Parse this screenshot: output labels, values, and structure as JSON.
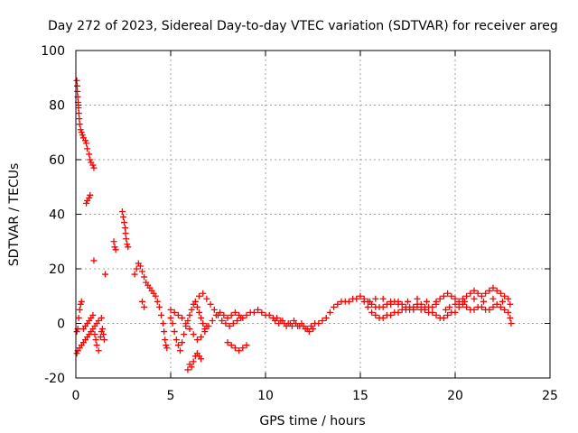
{
  "chart_data": {
    "type": "scatter",
    "title": "Day 272 of 2023, Sidereal Day-to-day VTEC variation (SDTVAR) for receiver areg",
    "xlabel": "GPS time / hours",
    "ylabel": "SDTVAR / TECUs",
    "xlim": [
      0,
      25
    ],
    "ylim": [
      -20,
      100
    ],
    "xticks": [
      0,
      5,
      10,
      15,
      20,
      25
    ],
    "yticks": [
      -20,
      0,
      20,
      40,
      60,
      80,
      100
    ],
    "grid": true,
    "marker": "+",
    "color": "#ff0000",
    "series": [
      {
        "name": "SDTVAR",
        "points": [
          [
            0.05,
            89
          ],
          [
            0.07,
            87
          ],
          [
            0.08,
            85
          ],
          [
            0.1,
            83
          ],
          [
            0.12,
            81
          ],
          [
            0.14,
            79
          ],
          [
            0.16,
            77
          ],
          [
            0.18,
            75
          ],
          [
            0.2,
            73
          ],
          [
            0.25,
            71
          ],
          [
            0.3,
            70
          ],
          [
            0.35,
            69
          ],
          [
            0.4,
            68
          ],
          [
            0.5,
            67
          ],
          [
            0.55,
            66
          ],
          [
            0.6,
            64
          ],
          [
            0.7,
            62
          ],
          [
            0.75,
            60
          ],
          [
            0.8,
            59
          ],
          [
            0.9,
            58
          ],
          [
            0.95,
            57
          ],
          [
            0.55,
            44
          ],
          [
            0.6,
            45
          ],
          [
            0.7,
            46
          ],
          [
            0.75,
            47
          ],
          [
            0.95,
            23
          ],
          [
            1.55,
            18
          ],
          [
            2.0,
            30
          ],
          [
            2.05,
            28
          ],
          [
            2.1,
            27
          ],
          [
            2.45,
            41
          ],
          [
            2.5,
            39
          ],
          [
            2.55,
            37
          ],
          [
            2.6,
            35
          ],
          [
            2.62,
            33
          ],
          [
            2.65,
            31
          ],
          [
            2.7,
            29
          ],
          [
            2.75,
            28
          ],
          [
            0.05,
            -11
          ],
          [
            0.1,
            -10
          ],
          [
            0.2,
            -9
          ],
          [
            0.3,
            -8
          ],
          [
            0.4,
            -7
          ],
          [
            0.5,
            -6
          ],
          [
            0.6,
            -5
          ],
          [
            0.7,
            -4
          ],
          [
            0.8,
            -3
          ],
          [
            0.9,
            -2
          ],
          [
            1.0,
            -1
          ],
          [
            1.1,
            0
          ],
          [
            1.2,
            1
          ],
          [
            1.35,
            2
          ],
          [
            0.05,
            -3
          ],
          [
            0.1,
            -2
          ],
          [
            0.15,
            2
          ],
          [
            0.2,
            5
          ],
          [
            0.25,
            7
          ],
          [
            0.3,
            8
          ],
          [
            0.4,
            -2
          ],
          [
            0.5,
            -1
          ],
          [
            0.6,
            0
          ],
          [
            0.7,
            1
          ],
          [
            0.8,
            2
          ],
          [
            0.9,
            3
          ],
          [
            1.0,
            -4
          ],
          [
            1.05,
            -6
          ],
          [
            1.1,
            -8
          ],
          [
            1.2,
            -10
          ],
          [
            1.3,
            -5
          ],
          [
            1.35,
            -3
          ],
          [
            1.4,
            -2
          ],
          [
            1.45,
            -4
          ],
          [
            1.5,
            -6
          ],
          [
            3.1,
            18
          ],
          [
            3.2,
            20
          ],
          [
            3.3,
            22
          ],
          [
            3.4,
            21
          ],
          [
            3.5,
            19
          ],
          [
            3.6,
            17
          ],
          [
            3.7,
            15
          ],
          [
            3.8,
            14
          ],
          [
            3.9,
            13
          ],
          [
            4.0,
            12
          ],
          [
            4.1,
            11
          ],
          [
            4.2,
            10
          ],
          [
            4.3,
            8
          ],
          [
            4.4,
            6
          ],
          [
            4.5,
            3
          ],
          [
            4.6,
            0
          ],
          [
            4.65,
            -3
          ],
          [
            4.7,
            -6
          ],
          [
            4.75,
            -8
          ],
          [
            4.8,
            -9
          ],
          [
            3.5,
            8
          ],
          [
            3.6,
            6
          ],
          [
            5.0,
            2
          ],
          [
            5.1,
            0
          ],
          [
            5.2,
            -3
          ],
          [
            5.3,
            -6
          ],
          [
            5.4,
            -8
          ],
          [
            5.5,
            -10
          ],
          [
            5.6,
            -7
          ],
          [
            5.7,
            -4
          ],
          [
            5.8,
            -1
          ],
          [
            5.9,
            1
          ],
          [
            6.0,
            3
          ],
          [
            6.1,
            5
          ],
          [
            6.2,
            7
          ],
          [
            6.3,
            8
          ],
          [
            6.4,
            6
          ],
          [
            6.5,
            4
          ],
          [
            6.6,
            2
          ],
          [
            6.7,
            0
          ],
          [
            6.8,
            -2
          ],
          [
            6.9,
            -1
          ],
          [
            5.0,
            5
          ],
          [
            5.2,
            4
          ],
          [
            5.4,
            3
          ],
          [
            5.6,
            2
          ],
          [
            5.8,
            0
          ],
          [
            6.0,
            -2
          ],
          [
            6.2,
            -4
          ],
          [
            6.4,
            -6
          ],
          [
            6.6,
            -5
          ],
          [
            6.8,
            -3
          ],
          [
            7.0,
            -1
          ],
          [
            7.2,
            1
          ],
          [
            7.4,
            3
          ],
          [
            7.6,
            4
          ],
          [
            7.8,
            3
          ],
          [
            8.0,
            2
          ],
          [
            8.2,
            3
          ],
          [
            8.4,
            4
          ],
          [
            8.6,
            3
          ],
          [
            8.8,
            2
          ],
          [
            6.5,
            10
          ],
          [
            6.7,
            11
          ],
          [
            6.9,
            9
          ],
          [
            7.1,
            7
          ],
          [
            7.3,
            5
          ],
          [
            7.5,
            3
          ],
          [
            7.7,
            1
          ],
          [
            7.9,
            0
          ],
          [
            8.1,
            -1
          ],
          [
            8.3,
            0
          ],
          [
            8.5,
            1
          ],
          [
            8.7,
            2
          ],
          [
            6.0,
            -15
          ],
          [
            6.1,
            -16
          ],
          [
            6.2,
            -14
          ],
          [
            6.3,
            -12
          ],
          [
            6.4,
            -11
          ],
          [
            6.5,
            -12
          ],
          [
            6.6,
            -13
          ],
          [
            5.9,
            -17
          ],
          [
            8.0,
            -7
          ],
          [
            8.2,
            -8
          ],
          [
            8.4,
            -9
          ],
          [
            8.6,
            -10
          ],
          [
            8.8,
            -9
          ],
          [
            9.0,
            -8
          ],
          [
            9.0,
            3
          ],
          [
            9.2,
            4
          ],
          [
            9.4,
            4
          ],
          [
            9.6,
            5
          ],
          [
            9.8,
            4
          ],
          [
            10.0,
            3
          ],
          [
            10.2,
            3
          ],
          [
            10.4,
            2
          ],
          [
            10.6,
            2
          ],
          [
            10.8,
            1
          ],
          [
            11.0,
            0
          ],
          [
            11.2,
            0
          ],
          [
            11.4,
            -1
          ],
          [
            11.6,
            0
          ],
          [
            11.8,
            -1
          ],
          [
            12.0,
            -1
          ],
          [
            12.2,
            -2
          ],
          [
            12.4,
            -1
          ],
          [
            12.6,
            0
          ],
          [
            12.8,
            0
          ],
          [
            13.0,
            1
          ],
          [
            10.5,
            1
          ],
          [
            10.7,
            0
          ],
          [
            10.9,
            1
          ],
          [
            11.1,
            -1
          ],
          [
            11.3,
            0
          ],
          [
            11.5,
            1
          ],
          [
            11.7,
            -1
          ],
          [
            11.9,
            0
          ],
          [
            12.1,
            -2
          ],
          [
            12.3,
            -3
          ],
          [
            12.5,
            -2
          ],
          [
            13.2,
            2
          ],
          [
            13.4,
            4
          ],
          [
            13.6,
            6
          ],
          [
            13.8,
            7
          ],
          [
            14.0,
            8
          ],
          [
            14.2,
            8
          ],
          [
            14.4,
            8
          ],
          [
            14.6,
            9
          ],
          [
            14.8,
            9
          ],
          [
            15.0,
            10
          ],
          [
            15.2,
            9
          ],
          [
            15.4,
            8
          ],
          [
            15.6,
            7
          ],
          [
            15.8,
            6
          ],
          [
            16.0,
            6
          ],
          [
            16.2,
            6
          ],
          [
            16.4,
            7
          ],
          [
            16.6,
            7
          ],
          [
            16.8,
            8
          ],
          [
            17.0,
            7
          ],
          [
            17.2,
            7
          ],
          [
            17.4,
            6
          ],
          [
            17.6,
            6
          ],
          [
            17.8,
            6
          ],
          [
            18.0,
            7
          ],
          [
            18.2,
            7
          ],
          [
            18.4,
            6
          ],
          [
            18.6,
            6
          ],
          [
            18.8,
            6
          ],
          [
            19.0,
            7
          ],
          [
            15.2,
            8
          ],
          [
            15.4,
            6
          ],
          [
            15.6,
            4
          ],
          [
            15.8,
            3
          ],
          [
            16.0,
            2
          ],
          [
            16.2,
            2
          ],
          [
            16.4,
            3
          ],
          [
            16.6,
            3
          ],
          [
            16.8,
            4
          ],
          [
            17.0,
            4
          ],
          [
            17.2,
            5
          ],
          [
            17.4,
            5
          ],
          [
            17.6,
            5
          ],
          [
            17.8,
            5
          ],
          [
            18.0,
            6
          ],
          [
            18.2,
            5
          ],
          [
            18.4,
            5
          ],
          [
            18.6,
            4
          ],
          [
            18.8,
            4
          ],
          [
            19.0,
            3
          ],
          [
            19.2,
            2
          ],
          [
            19.4,
            2
          ],
          [
            19.6,
            3
          ],
          [
            19.8,
            4
          ],
          [
            20.0,
            4
          ],
          [
            20.2,
            6
          ],
          [
            15.5,
            8
          ],
          [
            15.8,
            9
          ],
          [
            16.2,
            9
          ],
          [
            16.6,
            8
          ],
          [
            17.0,
            8
          ],
          [
            17.5,
            8
          ],
          [
            18.0,
            9
          ],
          [
            18.5,
            8
          ],
          [
            19.0,
            8
          ],
          [
            19.2,
            9
          ],
          [
            19.4,
            10
          ],
          [
            19.6,
            11
          ],
          [
            19.8,
            10
          ],
          [
            20.0,
            9
          ],
          [
            20.2,
            8
          ],
          [
            20.4,
            9
          ],
          [
            20.6,
            10
          ],
          [
            20.8,
            11
          ],
          [
            21.0,
            12
          ],
          [
            21.2,
            11
          ],
          [
            21.4,
            10
          ],
          [
            21.6,
            11
          ],
          [
            21.8,
            12
          ],
          [
            22.0,
            13
          ],
          [
            22.2,
            12
          ],
          [
            22.4,
            11
          ],
          [
            22.6,
            10
          ],
          [
            22.8,
            9
          ],
          [
            20.4,
            7
          ],
          [
            20.6,
            6
          ],
          [
            20.8,
            5
          ],
          [
            21.0,
            5
          ],
          [
            21.2,
            6
          ],
          [
            21.4,
            6
          ],
          [
            21.6,
            5
          ],
          [
            21.8,
            5
          ],
          [
            22.0,
            6
          ],
          [
            22.2,
            7
          ],
          [
            22.4,
            6
          ],
          [
            22.6,
            5
          ],
          [
            22.8,
            4
          ],
          [
            22.9,
            2
          ],
          [
            22.95,
            0
          ],
          [
            19.5,
            5
          ],
          [
            19.7,
            6
          ],
          [
            20.0,
            7
          ],
          [
            20.5,
            8
          ],
          [
            21.0,
            9
          ],
          [
            21.5,
            8
          ],
          [
            22.0,
            9
          ],
          [
            22.5,
            8
          ],
          [
            22.9,
            7
          ]
        ]
      }
    ]
  }
}
